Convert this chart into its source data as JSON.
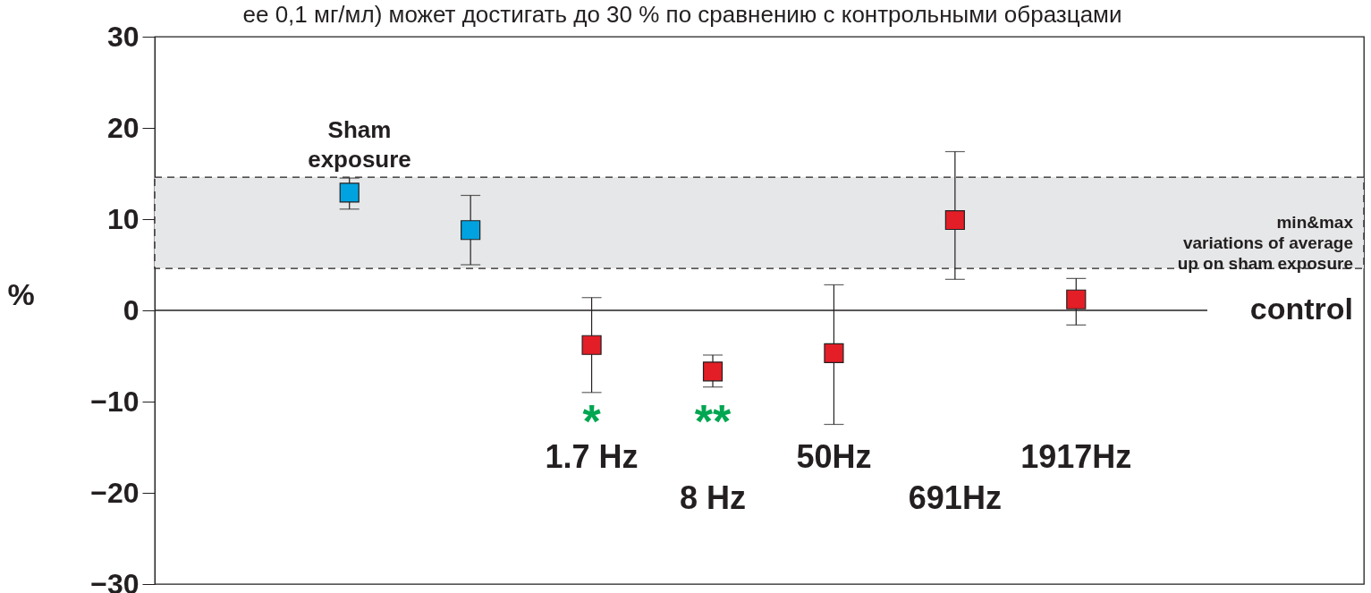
{
  "chart_data": {
    "type": "scatter",
    "categories": [
      null,
      null,
      "1.7 Hz",
      "8 Hz",
      "50Hz",
      "691Hz",
      "1917Hz"
    ],
    "ylabel": "%",
    "ylim": [
      -30,
      30
    ],
    "yticks": [
      -30,
      -20,
      -10,
      0,
      10,
      20,
      30
    ],
    "grid": false,
    "marker": "square",
    "series": [
      {
        "color": "#00a3e0",
        "values": [
          12.9,
          8.8,
          null,
          null,
          null,
          null,
          null
        ],
        "errors": [
          [
            11.1,
            14.5
          ],
          [
            5.0,
            12.6
          ],
          null,
          null,
          null,
          null,
          null
        ]
      },
      {
        "color": "#e31e26",
        "values": [
          null,
          null,
          -3.8,
          -6.7,
          -4.7,
          9.9,
          1.2
        ],
        "errors": [
          null,
          null,
          [
            -9.0,
            1.4
          ],
          [
            -8.4,
            -4.9
          ],
          [
            -12.5,
            2.8
          ],
          [
            3.4,
            17.4
          ],
          [
            -1.6,
            3.5
          ]
        ]
      }
    ],
    "ref_lines": [
      {
        "axis": "y",
        "value": 0,
        "label": "control"
      }
    ],
    "bands": [
      {
        "axis": "y",
        "from": 4.6,
        "to": 14.6,
        "label": "min&max\nvariations of average\nup on sham exposure",
        "color": "#e6e7e8"
      }
    ],
    "annotations": [
      "ее 0,1 мг/мл) может достигать до 30 % по сравнению с контрольными образцами",
      "Sham\nexposure",
      "*",
      "**"
    ]
  }
}
